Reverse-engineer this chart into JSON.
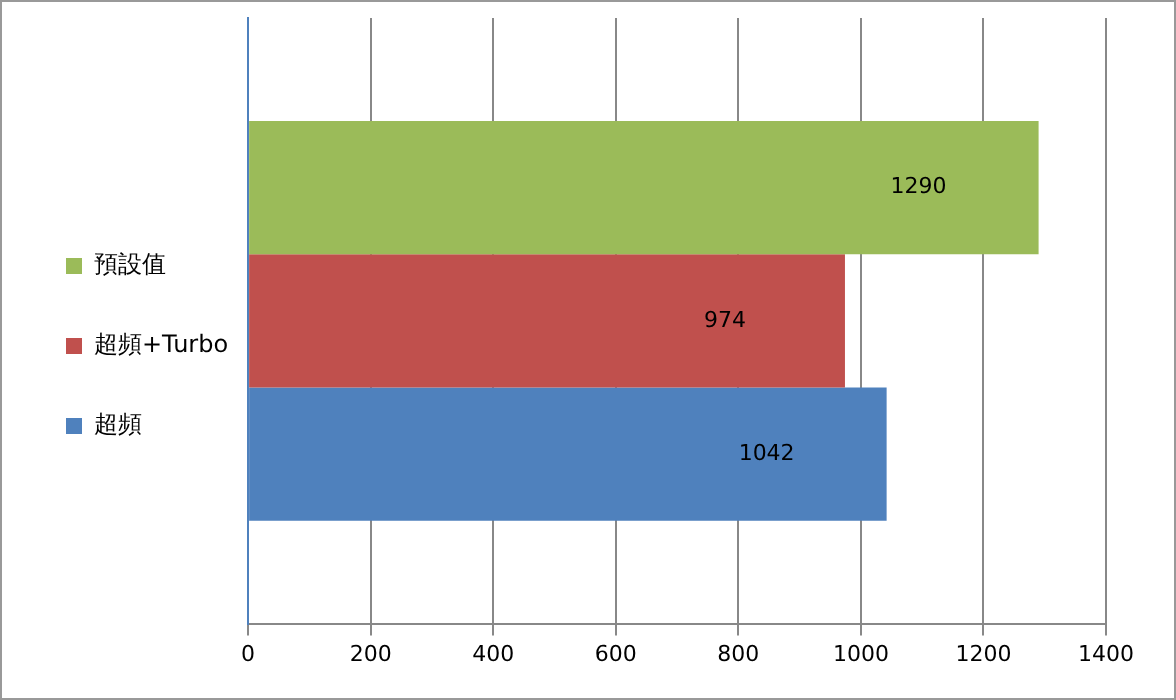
{
  "chart_data": {
    "type": "bar",
    "orientation": "horizontal",
    "categories": [
      null
    ],
    "series": [
      {
        "name": "預設值",
        "color": "#9bbb59",
        "values": [
          1290
        ]
      },
      {
        "name": "超頻+Turbo",
        "color": "#c0504d",
        "values": [
          974
        ]
      },
      {
        "name": "超頻",
        "color": "#4f81bd",
        "values": [
          1042
        ]
      }
    ],
    "xlim": [
      0,
      1400
    ],
    "xticks": [
      0,
      200,
      400,
      600,
      800,
      1000,
      1200,
      1400
    ],
    "grid": "x",
    "legend": "left",
    "data_labels": true
  }
}
